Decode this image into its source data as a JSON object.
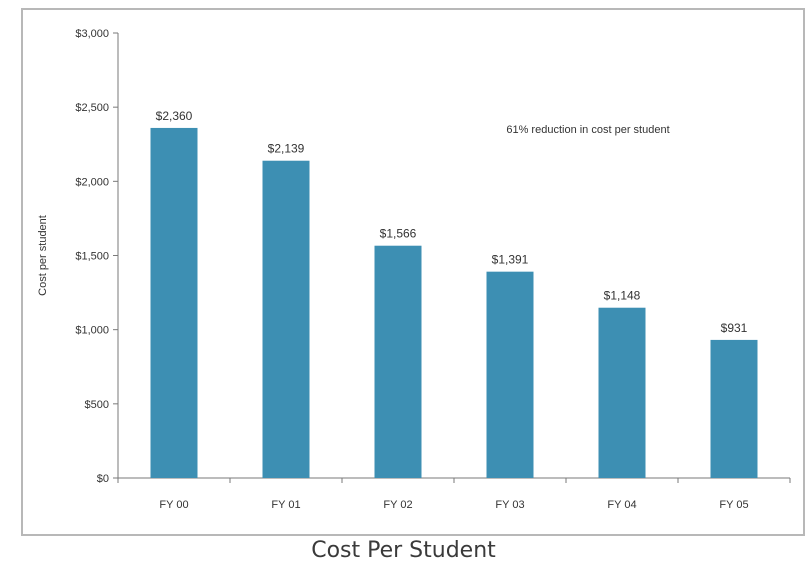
{
  "chart_data": {
    "type": "bar",
    "title": "Cost Per Student",
    "xlabel": "",
    "ylabel": "Cost per student",
    "categories": [
      "FY 00",
      "FY 01",
      "FY 02",
      "FY 03",
      "FY 04",
      "FY 05"
    ],
    "values": [
      2360,
      2139,
      1566,
      1391,
      1148,
      931
    ],
    "data_labels": [
      "$2,360",
      "$2,139",
      "$1,566",
      "$1,391",
      "$1,148",
      "$931"
    ],
    "ylim": [
      0,
      3000
    ],
    "yticks": [
      0,
      500,
      1000,
      1500,
      2000,
      2500,
      3000
    ],
    "ytick_labels": [
      "$0",
      "$500",
      "$1,000",
      "$1,500",
      "$2,000",
      "$2,500",
      "$3,000"
    ],
    "annotation": "61% reduction in cost per student",
    "bar_color": "#3d8fb3",
    "grid": false,
    "legend": "none"
  }
}
